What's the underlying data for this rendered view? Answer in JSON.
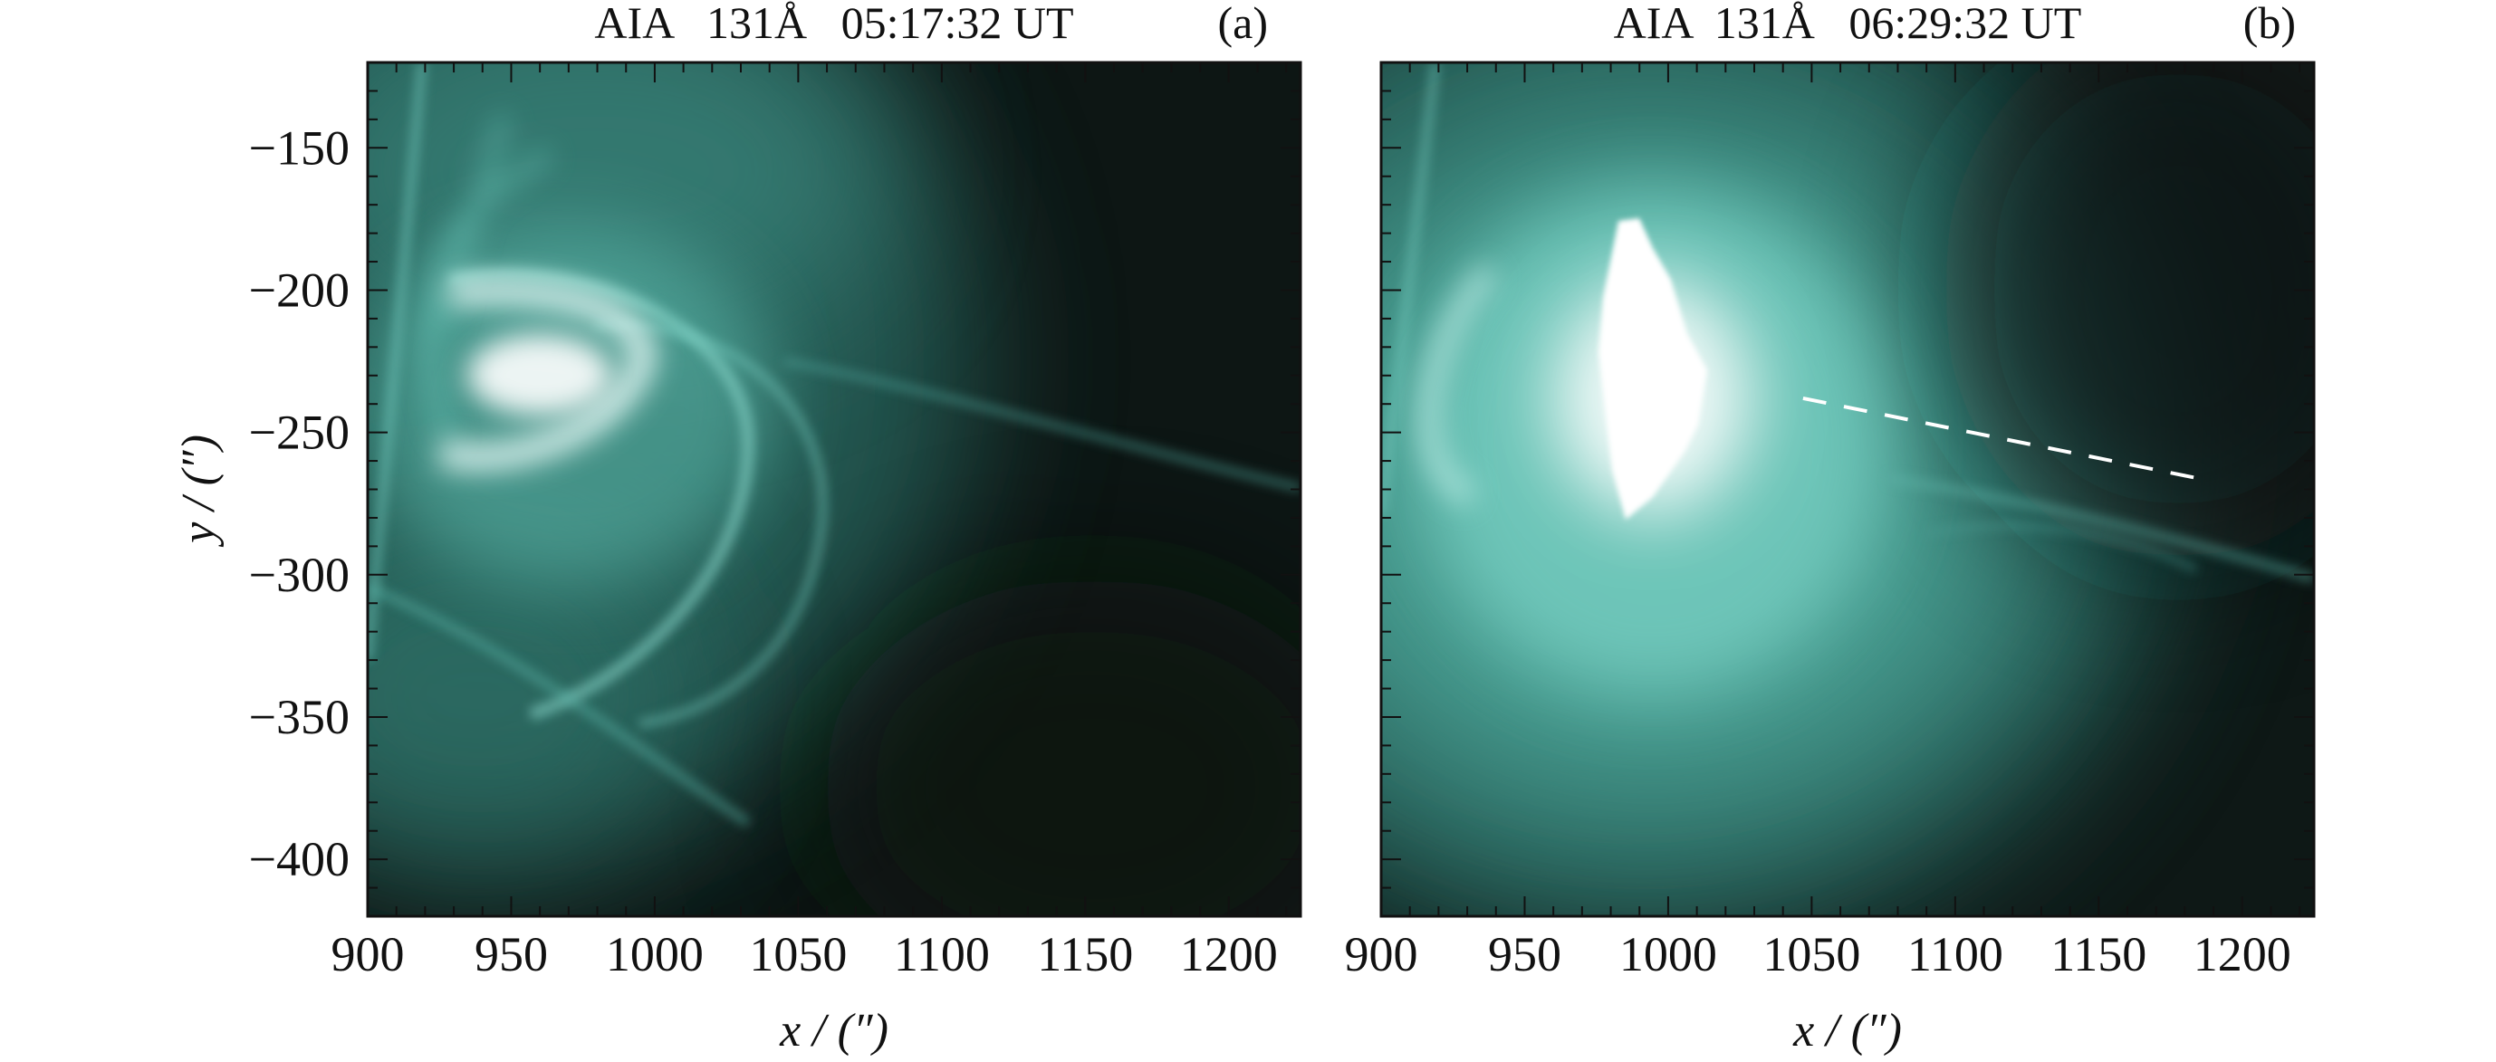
{
  "chart_data": [
    {
      "type": "image",
      "title": "AIA   131Å   05:17:32 UT",
      "panel_label": "(a)",
      "xlabel": "x / (″)",
      "ylabel": "y / (″)",
      "xlim": [
        900,
        1225
      ],
      "ylim": [
        -420,
        -120
      ],
      "xticks": [
        900,
        950,
        1000,
        1050,
        1100,
        1150,
        1200
      ],
      "yticks": [
        -150,
        -200,
        -250,
        -300,
        -350,
        -400
      ],
      "show_yticklabels": true,
      "colormap": [
        "#0c1513",
        "#2f7a70",
        "#6fcdbf",
        "#ffffff"
      ]
    },
    {
      "type": "image",
      "title": "AIA  131Å   06:29:32 UT",
      "panel_label": "(b)",
      "xlabel": "x / (″)",
      "ylabel": "",
      "xlim": [
        900,
        1225
      ],
      "ylim": [
        -420,
        -120
      ],
      "xticks": [
        900,
        950,
        1000,
        1050,
        1100,
        1150,
        1200
      ],
      "yticks": [
        -150,
        -200,
        -250,
        -300,
        -350,
        -400
      ],
      "show_yticklabels": false,
      "colormap": [
        "#0c1513",
        "#2f7a70",
        "#6fcdbf",
        "#ffffff"
      ],
      "annotations": [
        {
          "type": "dashed-line",
          "color": "#ffffff",
          "x": [
            1047,
            1184
          ],
          "y": [
            -238,
            -266
          ]
        }
      ]
    }
  ]
}
